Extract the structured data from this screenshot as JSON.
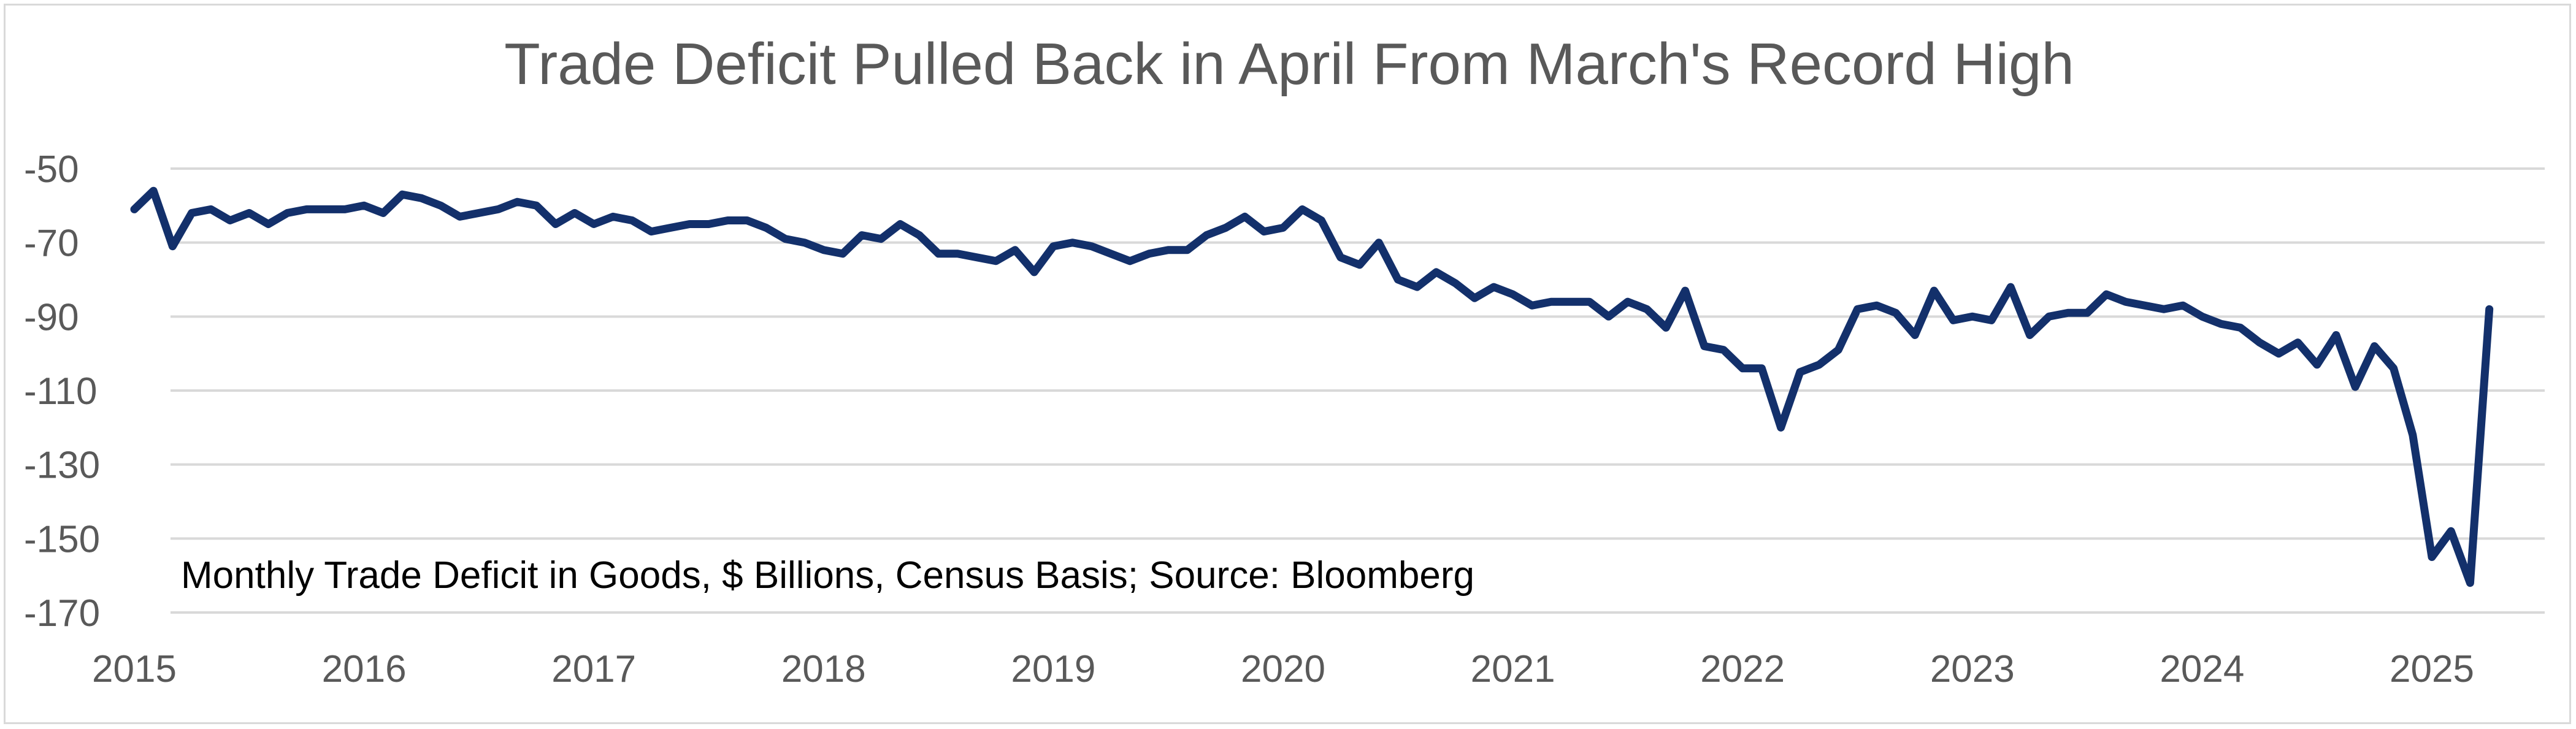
{
  "chart_data": {
    "type": "line",
    "title": "Trade Deficit Pulled Back in April From March's Record High",
    "annotation": "Monthly Trade Deficit in Goods, $ Billions, Census Basis; Source: Bloomberg",
    "xlabel": "",
    "ylabel": "",
    "ylim": [
      -170,
      -50
    ],
    "y_ticks": [
      -50,
      -70,
      -90,
      -110,
      -130,
      -150,
      -170
    ],
    "x_tick_labels": [
      "2015",
      "2016",
      "2017",
      "2018",
      "2019",
      "2020",
      "2021",
      "2022",
      "2023",
      "2024",
      "2025"
    ],
    "x_start": "2015-01",
    "x_end": "2025-04",
    "grid": true,
    "line_color": "#13306b",
    "series": [
      {
        "name": "Monthly Trade Deficit in Goods",
        "values": [
          -61,
          -56,
          -71,
          -62,
          -61,
          -64,
          -62,
          -65,
          -62,
          -61,
          -61,
          -61,
          -60,
          -62,
          -57,
          -58,
          -60,
          -63,
          -62,
          -61,
          -59,
          -60,
          -65,
          -62,
          -65,
          -63,
          -64,
          -67,
          -66,
          -65,
          -65,
          -64,
          -64,
          -66,
          -69,
          -70,
          -72,
          -73,
          -68,
          -69,
          -65,
          -68,
          -73,
          -73,
          -74,
          -75,
          -72,
          -78,
          -71,
          -70,
          -71,
          -73,
          -75,
          -73,
          -72,
          -72,
          -68,
          -66,
          -63,
          -67,
          -66,
          -61,
          -64,
          -74,
          -76,
          -70,
          -80,
          -82,
          -78,
          -81,
          -85,
          -82,
          -84,
          -87,
          -86,
          -86,
          -86,
          -90,
          -86,
          -88,
          -93,
          -83,
          -98,
          -99,
          -104,
          -104,
          -120,
          -105,
          -103,
          -99,
          -88,
          -87,
          -89,
          -95,
          -83,
          -91,
          -90,
          -91,
          -82,
          -95,
          -90,
          -89,
          -89,
          -84,
          -86,
          -87,
          -88,
          -87,
          -90,
          -92,
          -93,
          -97,
          -100,
          -97,
          -103,
          -95,
          -109,
          -98,
          -104,
          -122,
          -155,
          -148,
          -162,
          -88
        ]
      }
    ]
  }
}
